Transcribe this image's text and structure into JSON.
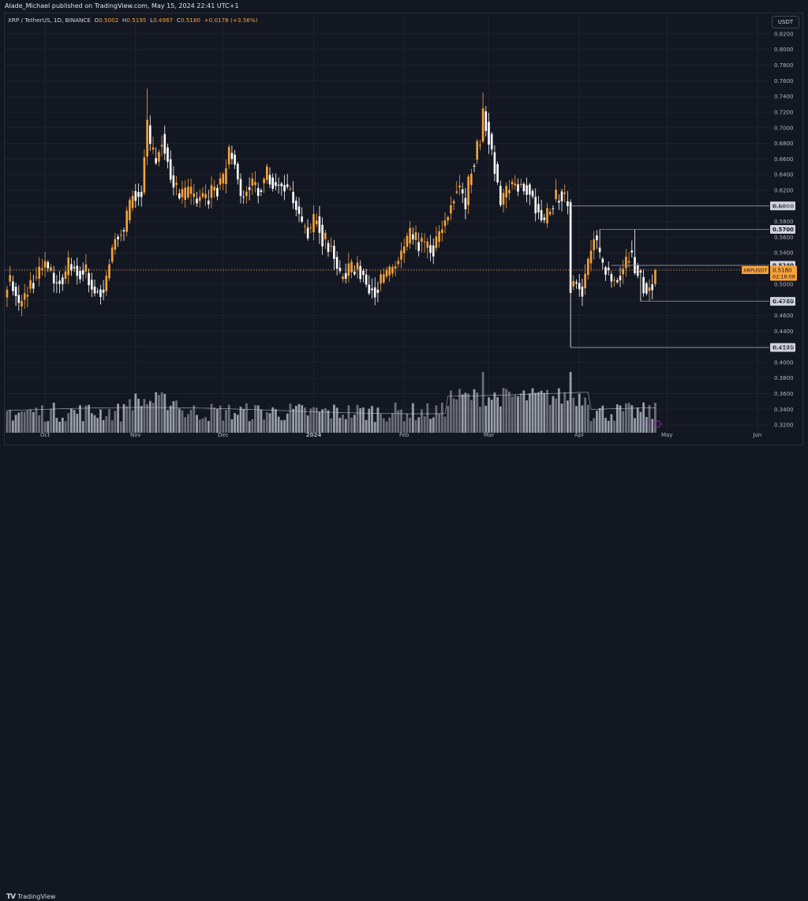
{
  "header": {
    "publisher_text": "Alade_Michael published on TradingView.com, May 15, 2024 22:41 UTC+1"
  },
  "legend": {
    "symbol": "XRP / TetherUS, 1D, BINANCE",
    "open_label": "O",
    "open": "0.5002",
    "high_label": "H",
    "high": "0.5195",
    "low_label": "L",
    "low": "0.4967",
    "close_label": "C",
    "close": "0.5180",
    "change": "+0.0178 (+3.56%)"
  },
  "currency_button": "USDT",
  "footer": {
    "brand": "TradingView",
    "brand_logo": "TV"
  },
  "colors": {
    "background": "#131722",
    "up_candle": "#f7a23b",
    "down_candle": "#ffffff",
    "volume": "#b2b5be",
    "level_line": "#9598a1",
    "price_tag": "#f7a23b"
  },
  "chart_data": {
    "type": "candlestick",
    "symbol": "XRPUSDT",
    "timeframe": "1D",
    "exchange": "BINANCE",
    "ylim": [
      0.31,
      0.83
    ],
    "y_ticks": [
      "0.8200",
      "0.8000",
      "0.7800",
      "0.7600",
      "0.7400",
      "0.7200",
      "0.7000",
      "0.6800",
      "0.6600",
      "0.6400",
      "0.6200",
      "0.6000",
      "0.5800",
      "0.5600",
      "0.5400",
      "0.5200",
      "0.5000",
      "0.4800",
      "0.4600",
      "0.4400",
      "0.4200",
      "0.4000",
      "0.3800",
      "0.3600",
      "0.3400",
      "0.3200"
    ],
    "x_ticks": [
      {
        "label": "Oct",
        "day": 13
      },
      {
        "label": "Nov",
        "day": 44
      },
      {
        "label": "Dec",
        "day": 74
      },
      {
        "label": "2024",
        "day": 105
      },
      {
        "label": "Feb",
        "day": 136
      },
      {
        "label": "Mar",
        "day": 165
      },
      {
        "label": "Apr",
        "day": 196
      },
      {
        "label": "May",
        "day": 226
      },
      {
        "label": "Jun",
        "day": 257
      }
    ],
    "horizontal_levels": [
      {
        "price": 0.6,
        "label": "0.6000"
      },
      {
        "price": 0.57,
        "label": "0.5700"
      },
      {
        "price": 0.524,
        "label": "0.5240"
      },
      {
        "price": 0.478,
        "label": "0.4780"
      },
      {
        "price": 0.419,
        "label": "0.4190"
      }
    ],
    "last_price": {
      "label": "XRPUSDT",
      "value": 0.518,
      "value_label": "0.5180",
      "countdown": "02:18:08"
    },
    "anchors": [
      {
        "day": 0,
        "close": 0.505
      },
      {
        "day": 2,
        "close": 0.498
      },
      {
        "day": 4,
        "close": 0.47
      },
      {
        "day": 8,
        "close": 0.5
      },
      {
        "day": 13,
        "close": 0.525
      },
      {
        "day": 16,
        "close": 0.505
      },
      {
        "day": 19,
        "close": 0.505
      },
      {
        "day": 21,
        "close": 0.525
      },
      {
        "day": 24,
        "close": 0.518
      },
      {
        "day": 27,
        "close": 0.515
      },
      {
        "day": 30,
        "close": 0.49
      },
      {
        "day": 33,
        "close": 0.49
      },
      {
        "day": 35,
        "close": 0.525
      },
      {
        "day": 37,
        "close": 0.56
      },
      {
        "day": 40,
        "close": 0.57
      },
      {
        "day": 43,
        "close": 0.615
      },
      {
        "day": 46,
        "close": 0.62
      },
      {
        "day": 48,
        "close": 0.7
      },
      {
        "day": 49,
        "close": 0.67
      },
      {
        "day": 51,
        "close": 0.66
      },
      {
        "day": 53,
        "close": 0.69
      },
      {
        "day": 56,
        "close": 0.64
      },
      {
        "day": 59,
        "close": 0.61
      },
      {
        "day": 62,
        "close": 0.615
      },
      {
        "day": 65,
        "close": 0.61
      },
      {
        "day": 68,
        "close": 0.61
      },
      {
        "day": 71,
        "close": 0.62
      },
      {
        "day": 74,
        "close": 0.63
      },
      {
        "day": 76,
        "close": 0.67
      },
      {
        "day": 78,
        "close": 0.655
      },
      {
        "day": 80,
        "close": 0.61
      },
      {
        "day": 83,
        "close": 0.625
      },
      {
        "day": 86,
        "close": 0.62
      },
      {
        "day": 89,
        "close": 0.64
      },
      {
        "day": 92,
        "close": 0.625
      },
      {
        "day": 95,
        "close": 0.63
      },
      {
        "day": 98,
        "close": 0.61
      },
      {
        "day": 101,
        "close": 0.57
      },
      {
        "day": 104,
        "close": 0.57
      },
      {
        "day": 106,
        "close": 0.59
      },
      {
        "day": 108,
        "close": 0.56
      },
      {
        "day": 111,
        "close": 0.545
      },
      {
        "day": 114,
        "close": 0.51
      },
      {
        "day": 117,
        "close": 0.515
      },
      {
        "day": 120,
        "close": 0.525
      },
      {
        "day": 123,
        "close": 0.5
      },
      {
        "day": 126,
        "close": 0.495
      },
      {
        "day": 130,
        "close": 0.51
      },
      {
        "day": 134,
        "close": 0.53
      },
      {
        "day": 138,
        "close": 0.56
      },
      {
        "day": 142,
        "close": 0.55
      },
      {
        "day": 146,
        "close": 0.545
      },
      {
        "day": 150,
        "close": 0.58
      },
      {
        "day": 154,
        "close": 0.625
      },
      {
        "day": 157,
        "close": 0.605
      },
      {
        "day": 159,
        "close": 0.65
      },
      {
        "day": 162,
        "close": 0.685
      },
      {
        "day": 163,
        "close": 0.72
      },
      {
        "day": 165,
        "close": 0.69
      },
      {
        "day": 167,
        "close": 0.65
      },
      {
        "day": 169,
        "close": 0.6
      },
      {
        "day": 172,
        "close": 0.63
      },
      {
        "day": 175,
        "close": 0.625
      },
      {
        "day": 178,
        "close": 0.625
      },
      {
        "day": 181,
        "close": 0.6
      },
      {
        "day": 184,
        "close": 0.575
      },
      {
        "day": 186,
        "close": 0.6
      },
      {
        "day": 189,
        "close": 0.615
      },
      {
        "day": 192,
        "close": 0.605
      },
      {
        "day": 193,
        "close": 0.5
      },
      {
        "day": 195,
        "close": 0.505
      },
      {
        "day": 197,
        "close": 0.495
      },
      {
        "day": 199,
        "close": 0.525
      },
      {
        "day": 201,
        "close": 0.56
      },
      {
        "day": 203,
        "close": 0.53
      },
      {
        "day": 205,
        "close": 0.52
      },
      {
        "day": 207,
        "close": 0.505
      },
      {
        "day": 210,
        "close": 0.515
      },
      {
        "day": 213,
        "close": 0.54
      },
      {
        "day": 215,
        "close": 0.525
      },
      {
        "day": 217,
        "close": 0.505
      },
      {
        "day": 219,
        "close": 0.495
      },
      {
        "day": 221,
        "close": 0.5002
      },
      {
        "day": 222,
        "close": 0.518
      }
    ]
  }
}
